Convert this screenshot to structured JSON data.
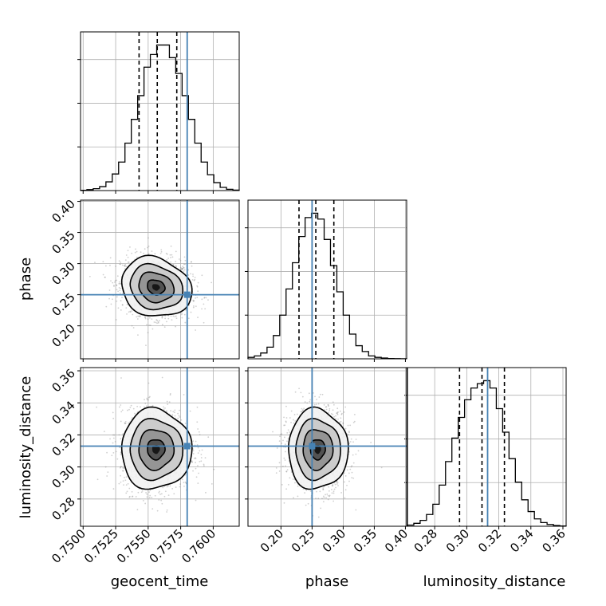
{
  "chart_data": {
    "type": "corner",
    "parameters": [
      "geocent_time",
      "phase",
      "luminosity_distance"
    ],
    "truth_color": "#4682b4",
    "truths": {
      "geocent_time": 0.758,
      "phase": 0.25,
      "luminosity_distance": 0.313
    },
    "quantiles": {
      "geocent_time": [
        0.7543,
        0.7557,
        0.7572
      ],
      "phase": [
        0.229,
        0.256,
        0.285
      ],
      "luminosity_distance": [
        0.2955,
        0.3095,
        0.3235
      ]
    },
    "ranges": {
      "geocent_time": [
        0.7498,
        0.762
      ],
      "phase": [
        0.147,
        0.402
      ],
      "luminosity_distance": [
        0.263,
        0.362
      ]
    },
    "ticks": {
      "geocent_time": [
        "0.7500",
        "0.7525",
        "0.7550",
        "0.7575",
        "0.7600"
      ],
      "phase": [
        "0.20",
        "0.25",
        "0.30",
        "0.35",
        "0.40"
      ],
      "luminosity_distance": [
        "0.28",
        "0.30",
        "0.32",
        "0.34",
        "0.36"
      ]
    },
    "histograms": {
      "geocent_time": [
        0.2,
        0.6,
        1.2,
        2.5,
        5.5,
        10.5,
        18,
        30,
        45,
        60,
        78,
        86,
        92,
        92,
        84,
        74,
        60,
        45,
        30,
        18,
        10,
        5,
        2,
        0.8,
        0.3
      ],
      "phase": [
        1,
        2,
        4,
        8,
        16,
        30,
        48,
        66,
        84,
        97,
        100,
        96,
        82,
        64,
        46,
        30,
        17,
        9,
        5,
        2,
        1,
        0.5,
        0.2,
        0.1,
        0.05
      ],
      "luminosity_distance": [
        0.8,
        2,
        4,
        8,
        15,
        28,
        44,
        60,
        74,
        86,
        94,
        97,
        99,
        94,
        80,
        64,
        46,
        30,
        18,
        10,
        5,
        2.5,
        1.2,
        0.5,
        0.2
      ]
    },
    "contours": {
      "phase_vs_geocent_time": {
        "mean": [
          0.7556,
          0.262
        ],
        "sd": [
          0.00135,
          0.024
        ],
        "rho": -0.15
      },
      "luminosity_distance_vs_geocent_time": {
        "mean": [
          0.7556,
          0.311
        ],
        "sd": [
          0.00135,
          0.0125
        ],
        "rho": 0.0
      },
      "luminosity_distance_vs_phase": {
        "mean": [
          0.259,
          0.311
        ],
        "sd": [
          0.024,
          0.0125
        ],
        "rho": 0.0
      }
    },
    "contour_levels_sigma": [
      0.5,
      1.0,
      1.5,
      2.0
    ],
    "grid": true
  }
}
